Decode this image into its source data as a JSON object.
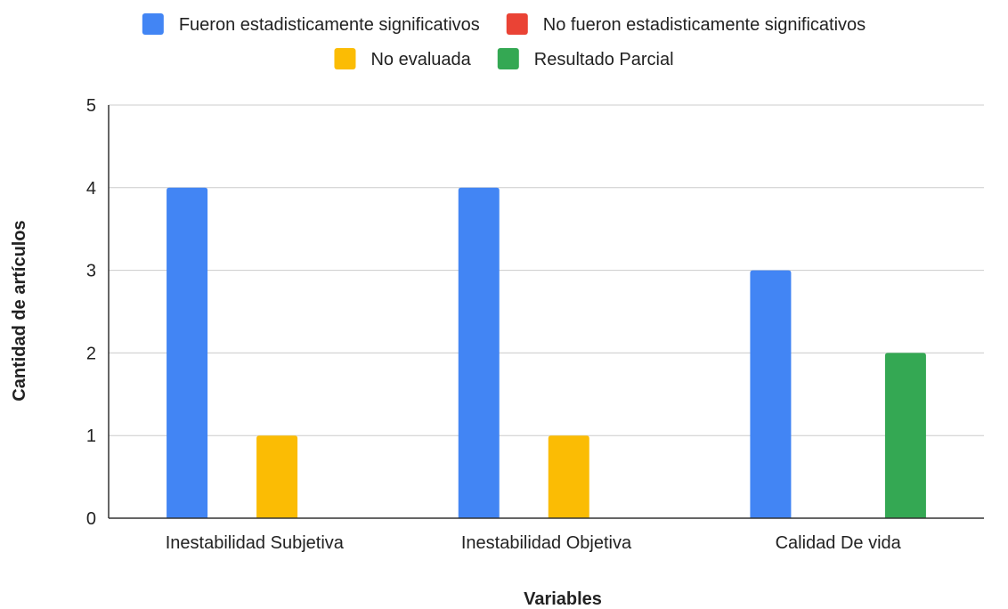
{
  "chart_data": {
    "type": "bar",
    "title": "",
    "xlabel": "Variables",
    "ylabel": "Cantidad de artículos",
    "ylim": [
      0,
      5
    ],
    "yticks": [
      0,
      1,
      2,
      3,
      4,
      5
    ],
    "grid": true,
    "legend_position": "top",
    "categories": [
      "Inestabilidad Subjetiva",
      "Inestabilidad Objetiva",
      "Calidad De vida"
    ],
    "series": [
      {
        "name": "Fueron estadisticamente significativos",
        "color": "#4285f4",
        "values": [
          4,
          4,
          3
        ]
      },
      {
        "name": "No fueron estadisticamente significativos",
        "color": "#ea4335",
        "values": [
          0,
          0,
          0
        ]
      },
      {
        "name": "No evaluada",
        "color": "#fbbc04",
        "values": [
          1,
          1,
          0
        ]
      },
      {
        "name": "Resultado Parcial",
        "color": "#34a853",
        "values": [
          0,
          0,
          2
        ]
      }
    ]
  }
}
